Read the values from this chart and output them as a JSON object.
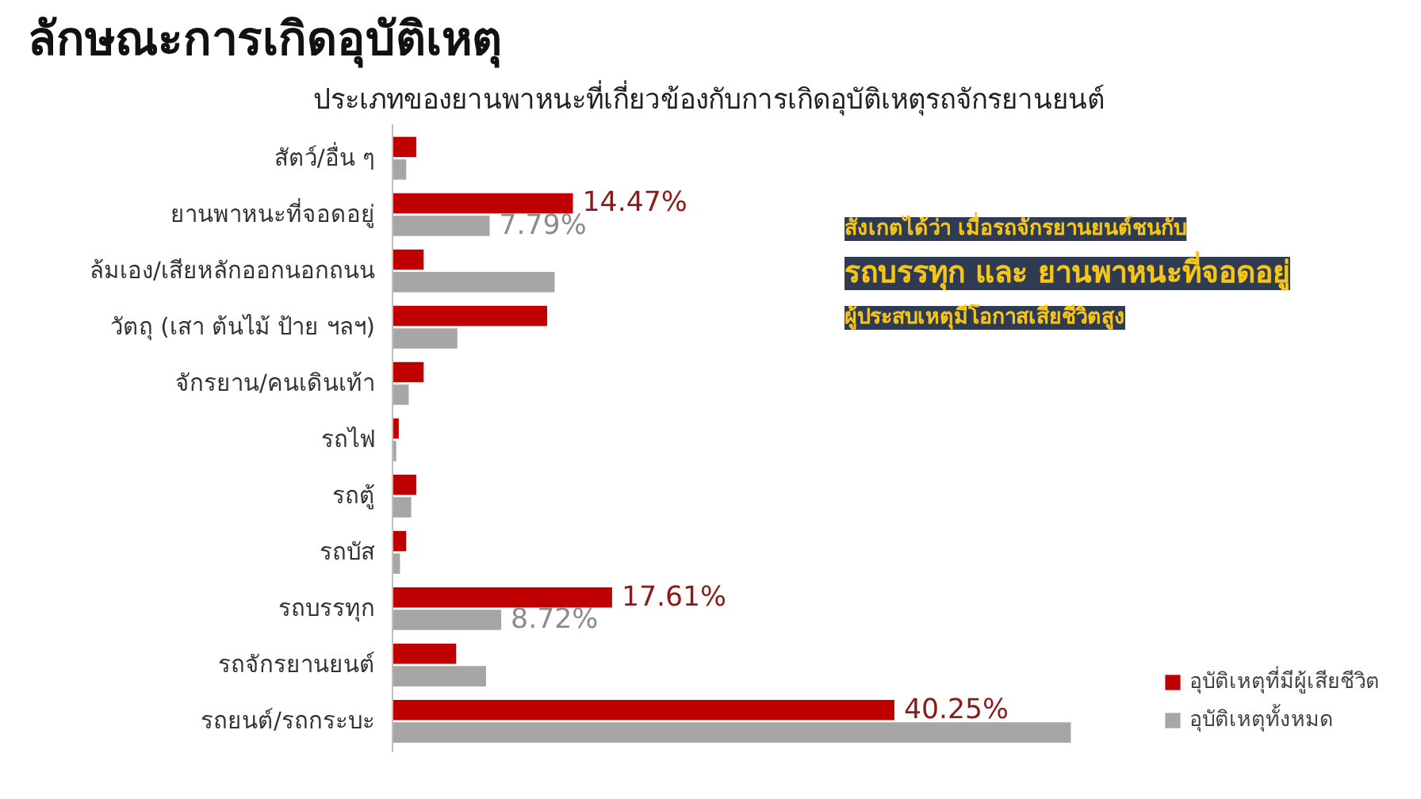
{
  "chart_data": {
    "type": "bar",
    "orientation": "horizontal",
    "title": "ลักษณะการเกิดอุบัติเหตุ",
    "subtitle": "ประเภทของยานพาหนะที่เกี่ยวข้องกับการเกิดอุบัติเหตุรถจักรยานยนต์",
    "categories": [
      "สัตว์/อื่น ๆ",
      "ยานพาหนะที่จอดอยู่",
      "ล้มเอง/เสียหลักออกนอกถนน",
      "วัตถุ (เสา ต้นไม้ ป้าย ฯลฯ)",
      "จักรยาน/คนเดินเท้า",
      "รถไฟ",
      "รถตู้",
      "รถบัส",
      "รถบรรทุก",
      "รถจักรยานยนต์",
      "รถยนต์/รถกระบะ"
    ],
    "series": [
      {
        "name": "อุบัติเหตุที่มีผู้เสียชีวิต",
        "color": "#c00000",
        "values": [
          1.9,
          14.47,
          2.5,
          12.4,
          2.5,
          0.5,
          1.9,
          1.1,
          17.61,
          5.1,
          40.25
        ],
        "value_labels": [
          null,
          "14.47%",
          null,
          null,
          null,
          null,
          null,
          null,
          "17.61%",
          null,
          "40.25%"
        ]
      },
      {
        "name": "อุบัติเหตุทั้งหมด",
        "color": "#a6a6a6",
        "values": [
          1.1,
          7.79,
          13.0,
          5.2,
          1.3,
          0.3,
          1.5,
          0.6,
          8.72,
          7.5,
          54.4
        ],
        "value_labels": [
          null,
          "7.79%",
          null,
          null,
          null,
          null,
          null,
          null,
          "8.72%",
          null,
          null
        ]
      }
    ],
    "annotations": [
      "สังเกตได้ว่า เมื่อรถจักรยานยนต์ชนกับ",
      "รถบรรทุก และ ยานพาหนะที่จอดอยู่",
      "ผู้ประสบเหตุมีโอกาสเสียชีวิตสูง"
    ],
    "legend": "bottom right",
    "grid": false
  }
}
